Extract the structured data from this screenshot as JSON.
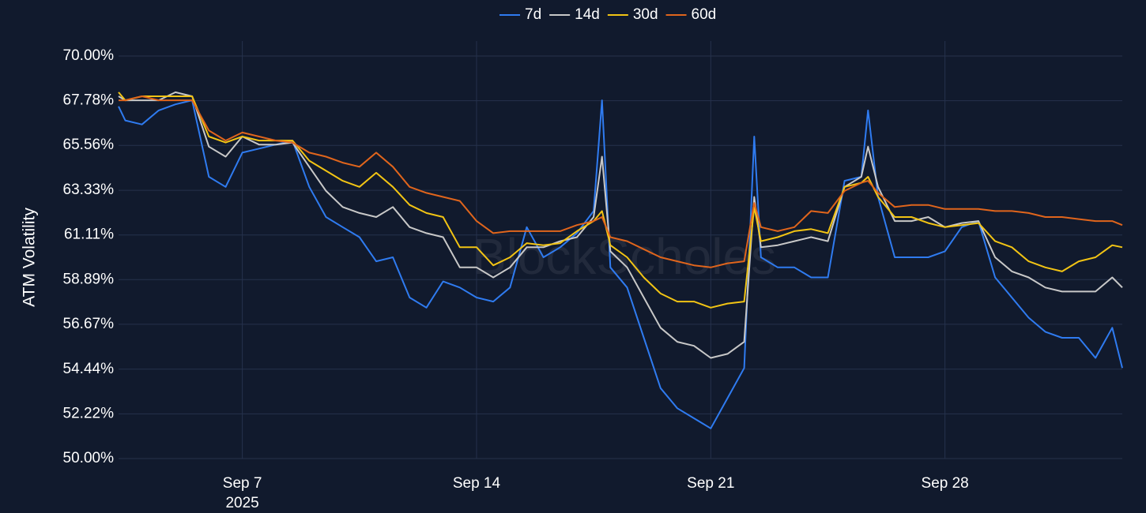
{
  "chart_data": {
    "type": "line",
    "y_label": "ATM Volatility",
    "watermark": "BlockScholes",
    "xtick_year": "2025",
    "x": [
      3.3,
      3.5,
      4,
      4.5,
      5,
      5.5,
      6,
      6.5,
      7,
      7.5,
      8,
      8.5,
      9,
      9.5,
      10,
      10.5,
      11,
      11.5,
      12,
      12.5,
      13,
      13.5,
      14,
      14.5,
      15,
      15.5,
      16,
      16.5,
      17,
      17.5,
      17.75,
      18,
      18.5,
      19,
      19.5,
      20,
      20.5,
      21,
      21.5,
      22,
      22.3,
      22.5,
      23,
      23.5,
      24,
      24.5,
      25,
      25.5,
      25.7,
      26,
      26.5,
      27,
      27.5,
      28,
      28.5,
      29,
      29.5,
      30,
      30.5,
      31,
      31.5,
      32,
      32.5,
      33,
      33.3
    ],
    "xlim": [
      3.3,
      33.3
    ],
    "xticks": [
      {
        "value": 7,
        "label": "Sep 7"
      },
      {
        "value": 14,
        "label": "Sep 14"
      },
      {
        "value": 21,
        "label": "Sep 21"
      },
      {
        "value": 28,
        "label": "Sep 28"
      }
    ],
    "ylim": [
      50,
      70
    ],
    "yticks": [
      {
        "value": 50,
        "label": "50.00%"
      },
      {
        "value": 52.22,
        "label": "52.22%"
      },
      {
        "value": 54.44,
        "label": "54.44%"
      },
      {
        "value": 56.67,
        "label": "56.67%"
      },
      {
        "value": 58.89,
        "label": "58.89%"
      },
      {
        "value": 61.11,
        "label": "61.11%"
      },
      {
        "value": 63.33,
        "label": "63.33%"
      },
      {
        "value": 65.56,
        "label": "65.56%"
      },
      {
        "value": 67.78,
        "label": "67.78%"
      },
      {
        "value": 70,
        "label": "70.00%"
      }
    ],
    "grid": true,
    "legend": "top",
    "series": [
      {
        "name": "7d",
        "color": "#2f7bf0",
        "values": [
          67.5,
          66.8,
          66.6,
          67.3,
          67.6,
          67.8,
          64,
          63.5,
          65.2,
          65.4,
          65.6,
          65.8,
          63.5,
          62,
          61.5,
          61,
          59.8,
          60,
          58,
          57.5,
          58.8,
          58.5,
          58,
          57.8,
          58.5,
          61.5,
          60,
          60.5,
          61.2,
          62.3,
          67.8,
          59.5,
          58.5,
          56,
          53.5,
          52.5,
          52,
          51.5,
          53,
          54.5,
          66,
          60,
          59.5,
          59.5,
          59,
          59,
          63.8,
          64,
          67.3,
          63,
          60,
          60,
          60,
          60.3,
          61.5,
          61.8,
          59,
          58,
          57,
          56.3,
          56,
          56,
          55,
          56.5,
          54.5
        ]
      },
      {
        "name": "14d",
        "color": "#c8c8c8",
        "values": [
          68,
          67.8,
          67.8,
          67.8,
          68.2,
          68,
          65.5,
          65,
          66,
          65.6,
          65.6,
          65.7,
          64.5,
          63.3,
          62.5,
          62.2,
          62,
          62.5,
          61.5,
          61.2,
          61,
          59.5,
          59.5,
          59,
          59.5,
          60.5,
          60.5,
          60.8,
          61,
          62,
          65,
          60.3,
          59.5,
          58,
          56.5,
          55.8,
          55.6,
          55,
          55.2,
          55.8,
          63,
          60.5,
          60.6,
          60.8,
          61,
          60.8,
          63.5,
          64,
          65.5,
          63.5,
          61.8,
          61.8,
          62,
          61.5,
          61.7,
          61.8,
          60,
          59.3,
          59,
          58.5,
          58.3,
          58.3,
          58.3,
          59,
          58.5
        ]
      },
      {
        "name": "30d",
        "color": "#f2c414",
        "values": [
          68.2,
          67.8,
          68,
          68,
          68,
          68,
          66,
          65.7,
          66,
          65.8,
          65.8,
          65.8,
          64.8,
          64.3,
          63.8,
          63.5,
          64.2,
          63.5,
          62.6,
          62.2,
          62,
          60.5,
          60.5,
          59.6,
          60,
          60.7,
          60.6,
          60.7,
          61.3,
          61.8,
          62.3,
          60.6,
          60,
          59,
          58.2,
          57.8,
          57.8,
          57.5,
          57.7,
          57.8,
          62.5,
          60.8,
          61,
          61.3,
          61.4,
          61.2,
          63.5,
          63.7,
          64,
          63,
          62,
          62,
          61.7,
          61.5,
          61.6,
          61.7,
          60.8,
          60.5,
          59.8,
          59.5,
          59.3,
          59.8,
          60,
          60.6,
          60.5
        ]
      },
      {
        "name": "60d",
        "color": "#e0651c",
        "values": [
          67.8,
          67.8,
          68,
          67.8,
          67.8,
          67.8,
          66.3,
          65.8,
          66.2,
          66,
          65.8,
          65.7,
          65.2,
          65,
          64.7,
          64.5,
          65.2,
          64.5,
          63.5,
          63.2,
          63,
          62.8,
          61.8,
          61.2,
          61.3,
          61.3,
          61.3,
          61.3,
          61.6,
          61.8,
          62,
          61,
          60.8,
          60.4,
          60,
          59.8,
          59.6,
          59.5,
          59.7,
          59.8,
          62.7,
          61.5,
          61.3,
          61.5,
          62.3,
          62.2,
          63.3,
          63.7,
          63.8,
          63.2,
          62.5,
          62.6,
          62.6,
          62.4,
          62.4,
          62.4,
          62.3,
          62.3,
          62.2,
          62,
          62,
          61.9,
          61.8,
          61.8,
          61.6
        ]
      }
    ]
  }
}
